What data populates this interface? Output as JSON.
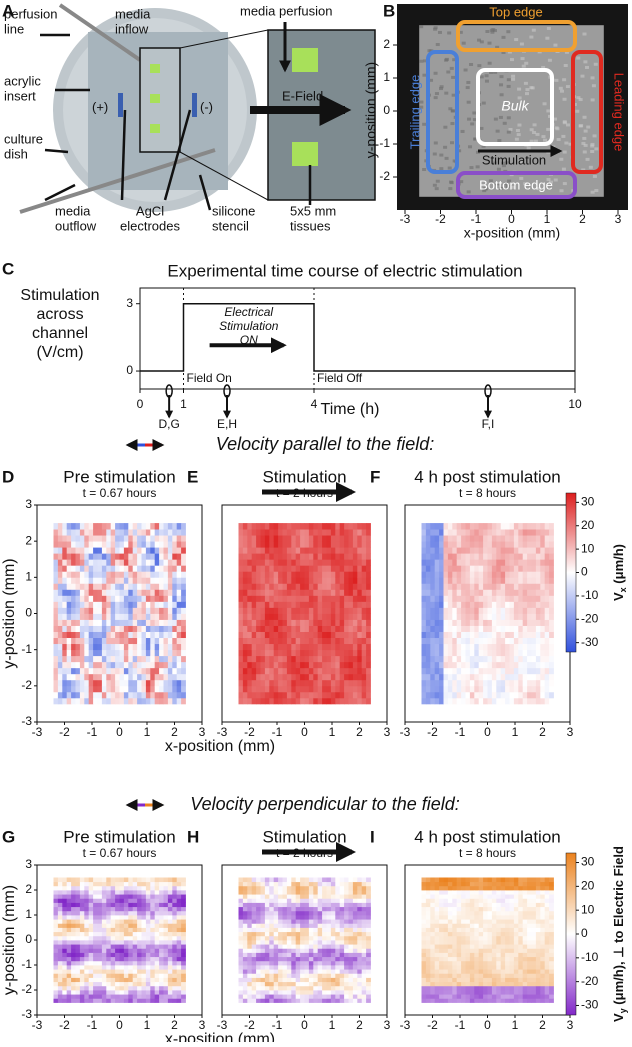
{
  "panel_a": {
    "letter": "A",
    "perfusion_line": [
      "perfusion",
      "line"
    ],
    "media_inflow": [
      "media",
      "inflow"
    ],
    "acrylic_insert": [
      "acrylic",
      "insert"
    ],
    "culture_dish": [
      "culture",
      "dish"
    ],
    "media_outflow": [
      "media",
      "outflow"
    ],
    "electrodes": [
      "AgCl",
      "electrodes"
    ],
    "stencil": [
      "silicone",
      "stencil"
    ],
    "tissues": [
      "5x5 mm",
      "tissues"
    ],
    "media_perfusion": "media perfusion",
    "e_field": "E-Field",
    "plus": "(+)",
    "minus": "(-)"
  },
  "panel_b": {
    "letter": "B",
    "xlabel": "x-position (mm)",
    "ylabel": "y-position (mm)",
    "xlim": [
      -3.5,
      3.5
    ],
    "ylim": [
      -3.1,
      3.1
    ],
    "xticks": [
      -3,
      -2,
      -1,
      0,
      1,
      2,
      3
    ],
    "yticks": [
      -2,
      -1,
      0,
      1,
      2
    ],
    "top": "Top edge",
    "leading": "Leading edge",
    "trailing": "Trailing edge",
    "bottom": "Bottom edge",
    "bulk": "Bulk",
    "stimulation": "Stimulation"
  },
  "panel_c": {
    "letter": "C",
    "title": "Experimental time course of electric stimulation",
    "ylabel": [
      "Stimulation",
      "across",
      "channel",
      "(V/cm)"
    ],
    "xlabel": "Time (h)",
    "xlim": [
      0,
      10
    ],
    "ylim": [
      -0.8,
      3.7
    ],
    "xticks": [
      0,
      1,
      4,
      10
    ],
    "yticks": [
      0,
      3
    ],
    "x": [
      0,
      1,
      1,
      4,
      4,
      10
    ],
    "y": [
      0,
      0,
      3,
      3,
      0,
      0
    ],
    "on_label": [
      "Electrical",
      "Stimulation",
      "ON"
    ],
    "field_on": "Field On",
    "field_off": "Field Off",
    "markers": [
      {
        "x": 0.67,
        "label": "D,G"
      },
      {
        "x": 2,
        "label": "E,H"
      },
      {
        "x": 8,
        "label": "F,I"
      }
    ]
  },
  "rows": [
    {
      "heading": "Velocity parallel to the field:",
      "panels": [
        {
          "letter": "D",
          "title": "Pre stimulation",
          "time": "t = 0.67 hours"
        },
        {
          "letter": "E",
          "title": "Stimulation",
          "time": "t = 2 hours"
        },
        {
          "letter": "F",
          "title": "4 h post stimulation",
          "time": "t = 8 hours"
        }
      ],
      "colorbar": {
        "symbol": "V",
        "sub": "x",
        "unit": " (μm/h)"
      }
    },
    {
      "heading": "Velocity perpendicular to the field:",
      "panels": [
        {
          "letter": "G",
          "title": "Pre stimulation",
          "time": "t = 0.67 hours"
        },
        {
          "letter": "H",
          "title": "Stimulation",
          "time": "t = 2 hours"
        },
        {
          "letter": "I",
          "title": "4 h post stimulation",
          "time": "t = 8 hours"
        }
      ],
      "colorbar": {
        "symbol": "V",
        "sub": "y",
        "unit": " (μm/h), ⊥ to Electric Field"
      }
    }
  ],
  "heatmap_axes": {
    "xlabel": "x-position (mm)",
    "ylabel": "y-position (mm)",
    "xlim": [
      -3,
      3
    ],
    "ylim": [
      -3,
      3
    ],
    "xticks": [
      -3,
      -2,
      -1,
      0,
      1,
      2,
      3
    ],
    "yticks": [
      -3,
      -2,
      -1,
      0,
      1,
      2,
      3
    ],
    "clim": [
      -34,
      34
    ],
    "cticks": [
      30,
      20,
      10,
      0,
      -10,
      -20,
      -30
    ]
  }
}
